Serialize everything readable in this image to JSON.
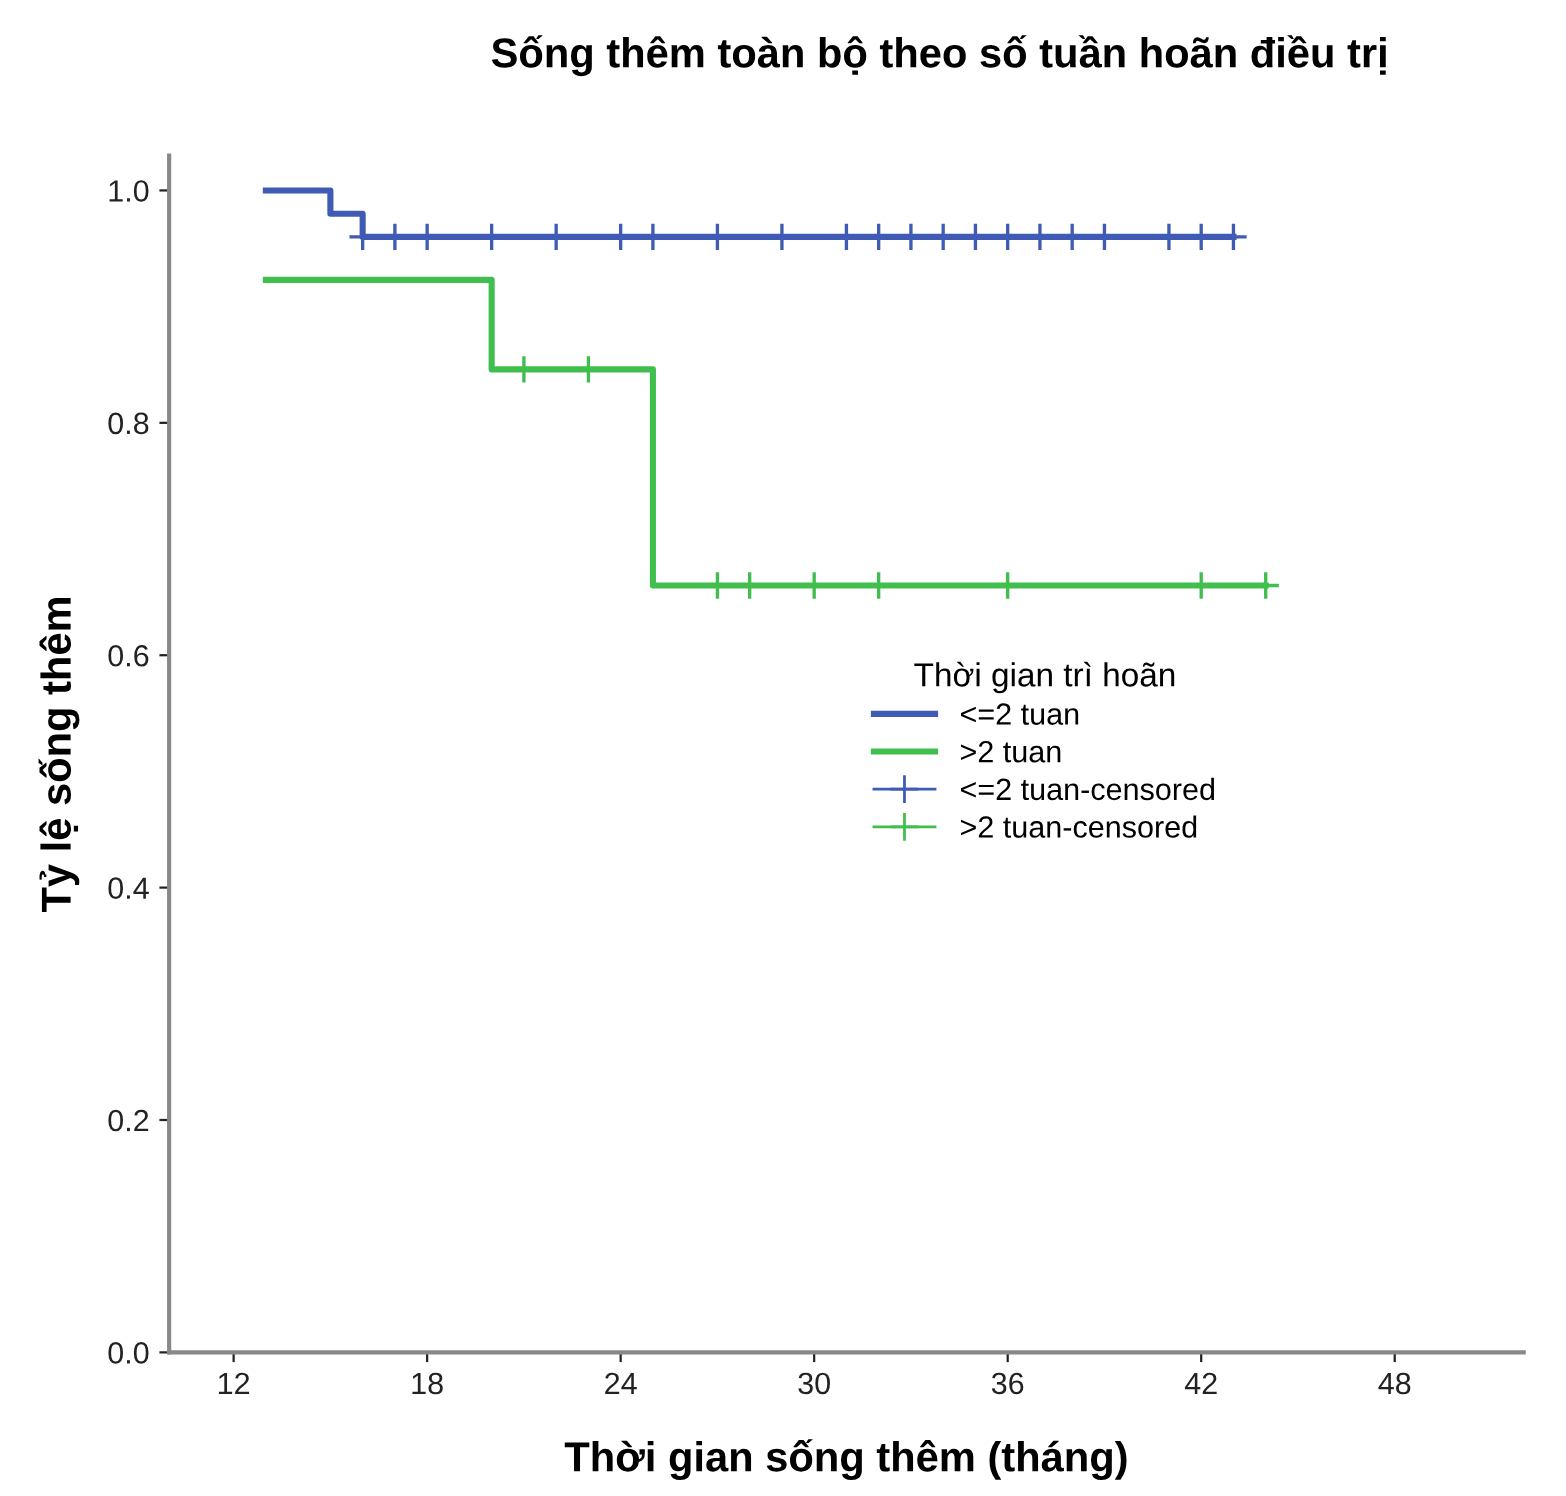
{
  "chart_data": {
    "type": "step",
    "title": "Sống thêm toàn bộ theo số tuần hoãn điều trị",
    "xlabel": "Thời gian sống thêm (tháng)",
    "ylabel": "Tỷ lệ sống thêm",
    "legend_title": "Thời gian trì hoãn",
    "legend": "right",
    "grid": false,
    "xlim": [
      10,
      52
    ],
    "xticks": [
      12,
      18,
      24,
      30,
      36,
      42,
      48
    ],
    "ylim": [
      0,
      1.03
    ],
    "yticks": [
      {
        "value": 0,
        "label": "0.0"
      },
      {
        "value": 0.2,
        "label": "0.2"
      },
      {
        "value": 0.4,
        "label": "0.4"
      },
      {
        "value": 0.6,
        "label": "0.6"
      },
      {
        "value": 0.8,
        "label": "0.8"
      },
      {
        "value": 1.0,
        "label": "1.0"
      }
    ],
    "series": [
      {
        "name": "<=2 tuan",
        "color": "#3f5bb5",
        "marker": "none",
        "x": [
          13,
          15,
          16,
          43
        ],
        "values": [
          1.0,
          0.98,
          0.96,
          0.96
        ]
      },
      {
        "name": ">2 tuan",
        "color": "#40bf4f",
        "marker": "none",
        "x": [
          13,
          20,
          25,
          44
        ],
        "values": [
          0.923,
          0.846,
          0.66,
          0.66
        ]
      },
      {
        "name": "<=2 tuan-censored",
        "type": "scatter",
        "color": "#3f5bb5",
        "marker": "cross",
        "x": [
          16,
          17,
          18,
          20,
          22,
          24,
          25,
          27,
          29,
          31,
          32,
          33,
          34,
          35,
          36,
          37,
          38,
          39,
          41,
          42,
          43
        ],
        "values": [
          0.96,
          0.96,
          0.96,
          0.96,
          0.96,
          0.96,
          0.96,
          0.96,
          0.96,
          0.96,
          0.96,
          0.96,
          0.96,
          0.96,
          0.96,
          0.96,
          0.96,
          0.96,
          0.96,
          0.96,
          0.96
        ]
      },
      {
        "name": ">2 tuan-censored",
        "type": "scatter",
        "color": "#40bf4f",
        "marker": "cross",
        "x": [
          21,
          23,
          27,
          28,
          30,
          32,
          36,
          42,
          44
        ],
        "values": [
          0.846,
          0.846,
          0.66,
          0.66,
          0.66,
          0.66,
          0.66,
          0.66,
          0.66
        ]
      }
    ]
  }
}
